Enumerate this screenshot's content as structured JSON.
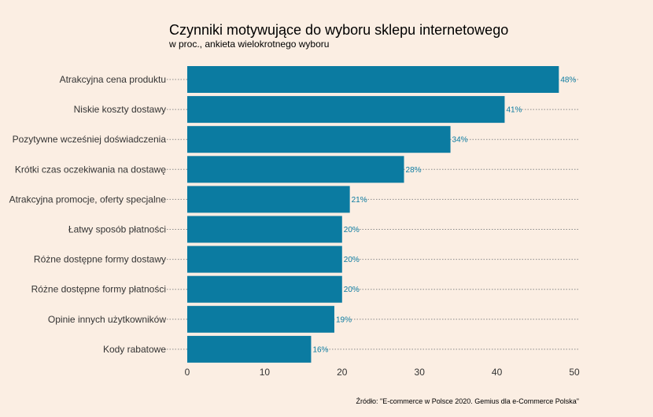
{
  "chart_data": {
    "type": "bar",
    "orientation": "horizontal",
    "title": "Czynniki motywujące do wyboru sklepu internetowego",
    "subtitle": "w proc., ankieta wielokrotnego wyboru",
    "source": "Źródło: \"E-commerce w Polsce 2020. Gemius dla e-Commerce Polska\"",
    "categories": [
      "Atrakcyjna cena produktu",
      "Niskie koszty dostawy",
      "Pozytywne wcześniej doświadczenia",
      "Krótki czas oczekiwania na dostawę",
      "Atrakcyjna promocje, oferty specjalne",
      "Łatwy sposób płatności",
      "Różne dostępne formy dostawy",
      "Różne dostępne formy płatności",
      "Opinie innych użytkowników",
      "Kody rabatowe"
    ],
    "values": [
      48,
      41,
      34,
      28,
      21,
      20,
      20,
      20,
      19,
      16
    ],
    "value_labels": [
      "48%",
      "41%",
      "34%",
      "28%",
      "21%",
      "20%",
      "20%",
      "20%",
      "19%",
      "16%"
    ],
    "xlim": [
      0,
      50
    ],
    "x_ticks": [
      0,
      10,
      20,
      30,
      40,
      50
    ],
    "x_tick_labels": [
      "0",
      "10",
      "20",
      "30",
      "40",
      "50"
    ],
    "xlabel": "",
    "ylabel": "",
    "grid": false,
    "legend": "none",
    "colors": {
      "bar": "#0b7ba1",
      "value_label": "#0b7ba1",
      "background": "#fbeee3",
      "leader_line": "#8a8a8a"
    }
  }
}
